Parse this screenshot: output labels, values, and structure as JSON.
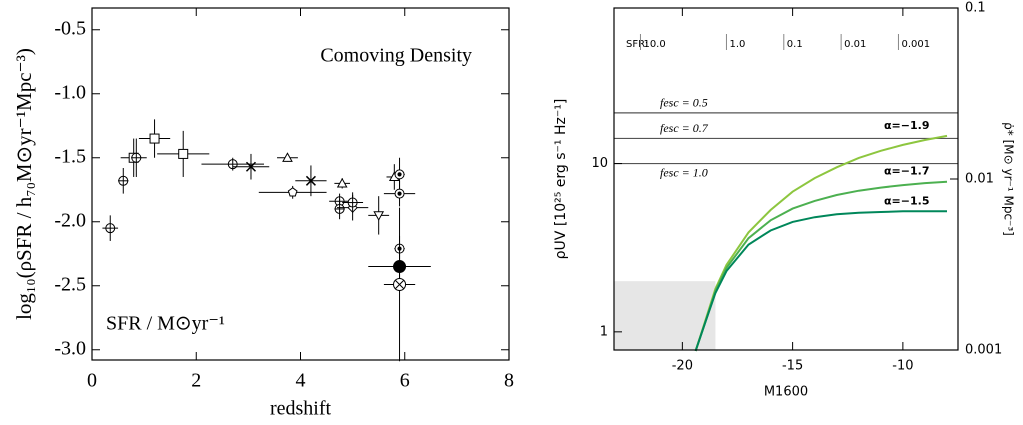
{
  "chart_data": [
    {
      "type": "scatter",
      "annotations": [
        "Comoving Density",
        "SFR / M⊙yr⁻¹"
      ],
      "x_label": "redshift",
      "y_label": "log₁₀(ρSFR / h₇₀M⊙yr⁻¹Mpc⁻³)",
      "x": [
        0.35,
        0.6,
        0.8,
        0.85,
        1.2,
        1.75,
        2.7,
        3.05,
        3.75,
        3.85,
        4.2,
        4.8,
        4.75,
        4.75,
        5.0,
        5.0,
        5.5,
        5.8,
        5.9,
        5.9,
        5.9,
        5.9,
        5.9
      ],
      "values": [
        -2.05,
        -1.68,
        -1.5,
        -1.5,
        -1.35,
        -1.47,
        -1.55,
        -1.57,
        -1.5,
        -1.77,
        -1.68,
        -1.7,
        -1.84,
        -1.9,
        -1.89,
        -1.85,
        -1.95,
        -1.65,
        -1.63,
        -1.78,
        -2.21,
        -2.35,
        -2.49
      ],
      "xerr": [
        0.15,
        0.1,
        0.25,
        0.1,
        0.3,
        0.5,
        0.6,
        0.35,
        0.2,
        0.65,
        0.3,
        0.15,
        0.2,
        0.1,
        0.3,
        0.2,
        0.2,
        0.15,
        0.1,
        0.3,
        0.1,
        0.6,
        0.3
      ],
      "yerr": [
        0.1,
        0.1,
        0.15,
        0.15,
        0.15,
        0.18,
        0.05,
        0.1,
        0.03,
        0.05,
        0.12,
        0.04,
        0.06,
        0.08,
        0.1,
        0.08,
        0.15,
        0.1,
        0.13,
        0.1,
        0.1,
        0.15,
        0.6
      ],
      "markers": [
        "circle-plus",
        "circle-plus",
        "square",
        "circle-plus",
        "square",
        "square",
        "circle-plus",
        "x",
        "triangle",
        "pentagon",
        "x",
        "triangle",
        "circle-plus",
        "circle-plus",
        "diamond",
        "circle-plus",
        "down-triangle",
        "triangle",
        "circle-dot",
        "circle-dot",
        "circle-dot",
        "filled-circle",
        "circle-x"
      ],
      "xlim": [
        0,
        8
      ],
      "ylim": [
        -3.08,
        -0.33
      ],
      "xticks": [
        0,
        2,
        4,
        6,
        8
      ],
      "yticks": [
        -0.5,
        {
          "value": -1,
          "label": "-1.0"
        },
        -1.5,
        {
          "value": -2,
          "label": "-2.0"
        },
        -2.5,
        {
          "value": -3,
          "label": "-3.0"
        }
      ]
    },
    {
      "type": "line",
      "x_label": "M1600",
      "y_label": "ρUV  [10²⁵ erg s⁻¹ Hz⁻¹]",
      "y2_label": "ρ̇*  [M⊙ yr⁻¹ Mpc⁻³]",
      "ylog": true,
      "y2log": true,
      "xlim": [
        -23.1,
        -7.5
      ],
      "ylim": [
        0.78,
        84
      ],
      "y2lim": [
        0.001,
        0.1
      ],
      "xticks": [
        -20,
        -15,
        -10
      ],
      "yticks": [
        1,
        10
      ],
      "y2ticks": [
        0.001,
        0.01,
        0.1
      ],
      "sfr_scale": {
        "label": "SFR:",
        "labels": [
          "10.0",
          "1.0",
          "0.1",
          "0.01",
          "0.001"
        ],
        "x": [
          -21.9,
          -18.0,
          -15.4,
          -12.8,
          -10.2
        ]
      },
      "shaded_region": {
        "x": [
          -23.1,
          -18.5
        ],
        "y": [
          0.78,
          2
        ]
      },
      "reference_lines": [
        {
          "label": "fesc = 0.5",
          "value": 20
        },
        {
          "label": "fesc = 0.7",
          "value": 14.1
        },
        {
          "label": "fesc = 1.0",
          "value": 10
        }
      ],
      "x": [
        -19.4,
        -19,
        -18.5,
        -18,
        -17,
        -16,
        -15,
        -14,
        -13,
        -12,
        -11,
        -10,
        -9,
        -8
      ],
      "series": [
        {
          "name": "α=−1.9",
          "color": "#8dc63f",
          "values": [
            0.77,
            1.12,
            1.8,
            2.5,
            3.9,
            5.3,
            6.8,
            8.2,
            9.5,
            10.8,
            11.9,
            12.9,
            13.8,
            14.6
          ]
        },
        {
          "name": "α=−1.7",
          "color": "#4cb050",
          "values": [
            0.77,
            1.1,
            1.75,
            2.4,
            3.6,
            4.6,
            5.4,
            6.0,
            6.5,
            6.9,
            7.2,
            7.45,
            7.65,
            7.8
          ]
        },
        {
          "name": "α=−1.5",
          "color": "#00875a",
          "values": [
            0.77,
            1.1,
            1.7,
            2.3,
            3.3,
            4.0,
            4.5,
            4.8,
            5.0,
            5.1,
            5.15,
            5.2,
            5.2,
            5.2
          ]
        }
      ]
    }
  ]
}
